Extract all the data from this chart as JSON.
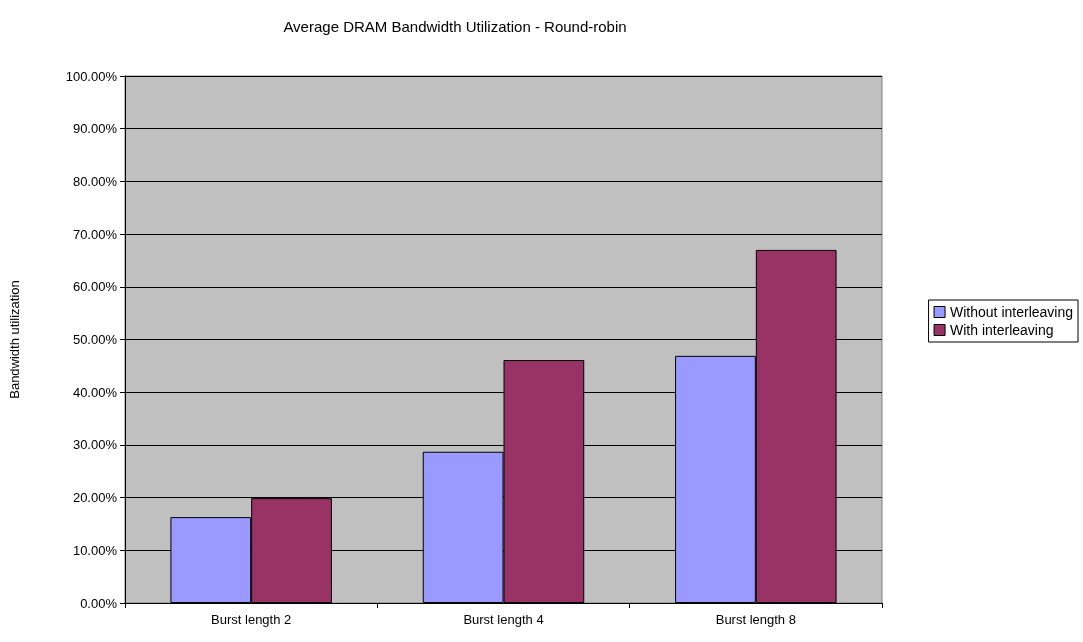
{
  "chart_data": {
    "type": "bar",
    "title": "Average DRAM Bandwidth Utilization - Round-robin",
    "ylabel": "Bandwidth utilization",
    "categories": [
      "Burst length 2",
      "Burst length 4",
      "Burst length 8"
    ],
    "series": [
      {
        "name": "Without interleaving",
        "color": "#9999ff",
        "values": [
          16.3,
          28.7,
          46.9
        ]
      },
      {
        "name": "With interleaving",
        "color": "#993366",
        "values": [
          19.9,
          46.1,
          67.0
        ]
      }
    ],
    "ylim": [
      0,
      100
    ],
    "yticks": [
      {
        "value": 0,
        "label": "0.00%"
      },
      {
        "value": 10,
        "label": "10.00%"
      },
      {
        "value": 20,
        "label": "20.00%"
      },
      {
        "value": 30,
        "label": "30.00%"
      },
      {
        "value": 40,
        "label": "40.00%"
      },
      {
        "value": 50,
        "label": "50.00%"
      },
      {
        "value": 60,
        "label": "60.00%"
      },
      {
        "value": 70,
        "label": "70.00%"
      },
      {
        "value": 80,
        "label": "80.00%"
      },
      {
        "value": 90,
        "label": "90.00%"
      },
      {
        "value": 100,
        "label": "100.00%"
      }
    ],
    "grid": "y",
    "legend": "right"
  }
}
